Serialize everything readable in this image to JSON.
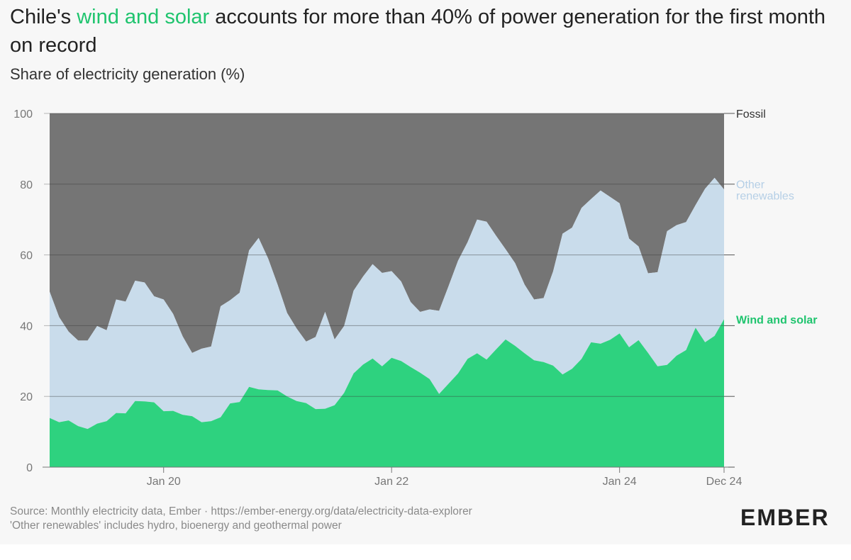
{
  "title": {
    "prefix": "Chile's ",
    "highlight": "wind and solar",
    "suffix": " accounts for more than 40% of power generation for the first month on record",
    "highlight_color": "#1fc46e"
  },
  "subtitle": "Share of electricity generation (%)",
  "footer": {
    "line1": "Source: Monthly electricity data, Ember · https://ember-energy.org/data/electricity-data-explorer",
    "line2": "'Other renewables' includes hydro, bioenergy and geothermal power"
  },
  "logo": "EMBER",
  "chart_data": {
    "type": "area",
    "stacked": true,
    "title": "Chile's wind and solar accounts for more than 40% of power generation for the first month on record",
    "ylabel": "Share of electricity generation (%)",
    "ylim": [
      0,
      100
    ],
    "yticks": [
      "0",
      "20",
      "40",
      "60",
      "80",
      "100"
    ],
    "x_tick_labels": [
      {
        "label": "Jan 20",
        "index": 12
      },
      {
        "label": "Jan 22",
        "index": 36
      },
      {
        "label": "Jan 24",
        "index": 60
      },
      {
        "label": "Dec 24",
        "index": 71
      }
    ],
    "x_start": "Jan 2019",
    "x_end": "Dec 2024",
    "legend_labels": {
      "fossil": "Fossil",
      "other_line1": "Other",
      "other_line2": "renewables",
      "wind_solar": "Wind and solar"
    },
    "colors": {
      "wind_solar": "#2ed27f",
      "other": "#c9dceb",
      "fossil": "#757575",
      "wind_solar_label": "#1fc46e",
      "other_label": "#b5cfe6",
      "fossil_label": "#333333"
    },
    "series": [
      {
        "name": "Wind and solar",
        "values": [
          13.9,
          12.7,
          13.2,
          11.6,
          10.8,
          12.3,
          13,
          15.3,
          15.2,
          18.7,
          18.6,
          18.3,
          15.8,
          15.9,
          14.8,
          14.4,
          12.7,
          13,
          14.1,
          18,
          18.4,
          22.7,
          22,
          21.8,
          21.7,
          20,
          18.7,
          18.1,
          16.4,
          16.5,
          17.5,
          21,
          26.5,
          29,
          30.7,
          28.5,
          30.9,
          30,
          28.3,
          26.7,
          24.9,
          20.7,
          23.6,
          26.5,
          30.6,
          32.2,
          30.4,
          33.3,
          36.1,
          34.3,
          32.2,
          30.2,
          29.7,
          28.7,
          26.2,
          27.8,
          30.6,
          35.3,
          34.9,
          36,
          37.8,
          33.9,
          35.9,
          32.3,
          28.5,
          28.9,
          31.5,
          33.1,
          39.4,
          35.3,
          37.1,
          41.8
        ]
      },
      {
        "name": "Other renewables",
        "total_values": [
          49.6,
          42.4,
          38.3,
          35.8,
          35.8,
          39.9,
          38.7,
          47.4,
          46.8,
          52.7,
          52.2,
          48.3,
          47.4,
          43.3,
          37,
          32.3,
          33.5,
          34.1,
          45.5,
          47.2,
          49.3,
          61.3,
          64.8,
          59,
          51.6,
          43.6,
          39.2,
          35.5,
          36.8,
          43.9,
          36.1,
          39.9,
          49.9,
          53.9,
          57.4,
          54.9,
          55.4,
          52.5,
          46.7,
          43.9,
          44.6,
          44.2,
          51.2,
          58.4,
          63.6,
          70,
          69.4,
          65.4,
          61.6,
          57.7,
          51.6,
          47.4,
          47.8,
          55.3,
          66,
          67.7,
          73.3,
          75.8,
          78.2,
          76.4,
          74.6,
          64.6,
          62.4,
          54.8,
          55.1,
          66.7,
          68.4,
          69.3,
          74.1,
          78.7,
          81.8,
          78.5
        ]
      },
      {
        "name": "Fossil",
        "total_values": [
          100,
          100,
          100,
          100,
          100,
          100,
          100,
          100,
          100,
          100,
          100,
          100,
          100,
          100,
          100,
          100,
          100,
          100,
          100,
          100,
          100,
          100,
          100,
          100,
          100,
          100,
          100,
          100,
          100,
          100,
          100,
          100,
          100,
          100,
          100,
          100,
          100,
          100,
          100,
          100,
          100,
          100,
          100,
          100,
          100,
          100,
          100,
          100,
          100,
          100,
          100,
          100,
          100,
          100,
          100,
          100,
          100,
          100,
          100,
          100,
          100,
          100,
          100,
          100,
          100,
          100,
          100,
          100,
          100,
          100,
          100,
          100
        ]
      }
    ]
  }
}
